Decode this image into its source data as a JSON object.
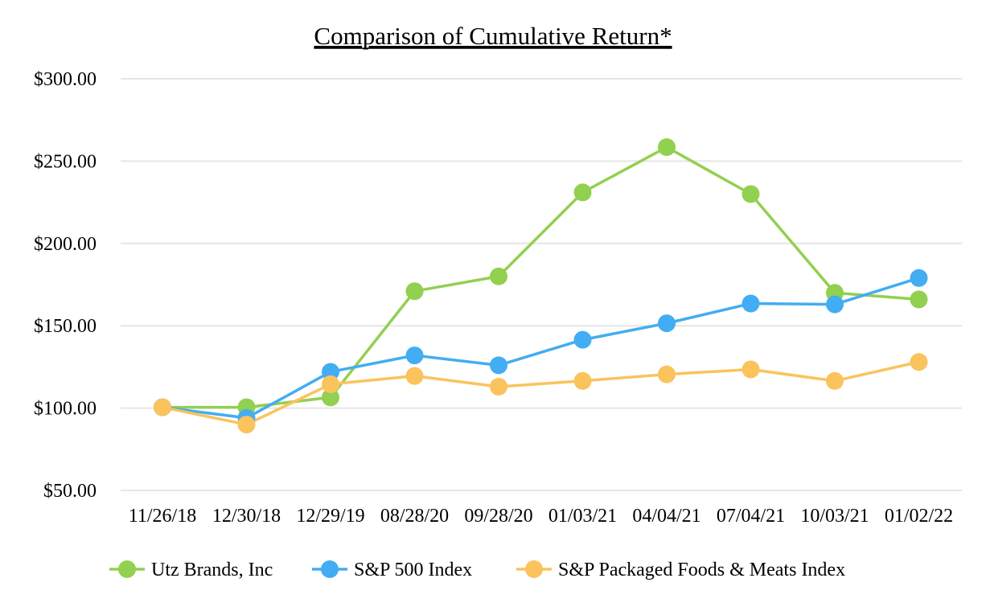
{
  "chart_data": {
    "type": "line",
    "title": "Comparison of Cumulative Return*",
    "xlabel": "",
    "ylabel": "",
    "categories": [
      "11/26/18",
      "12/30/18",
      "12/29/19",
      "08/28/20",
      "09/28/20",
      "01/03/21",
      "04/04/21",
      "07/04/21",
      "10/03/21",
      "01/02/22"
    ],
    "y_ticks": [
      "$50.00",
      "$100.00",
      "$150.00",
      "$200.00",
      "$250.00",
      "$300.00"
    ],
    "ylim": [
      50,
      300
    ],
    "grid": true,
    "legend_position": "bottom",
    "series": [
      {
        "name": "Utz Brands, Inc",
        "color": "#92d050",
        "values": [
          100.5,
          100.5,
          106.5,
          171,
          180,
          231,
          258.5,
          230,
          170,
          166
        ]
      },
      {
        "name": "S&P 500 Index",
        "color": "#42adf2",
        "values": [
          100.5,
          94,
          122,
          132,
          126,
          141.5,
          151.5,
          163.5,
          163,
          179
        ]
      },
      {
        "name": "S&P Packaged Foods & Meats Index",
        "color": "#fbc35c",
        "values": [
          100.5,
          90,
          114.5,
          119.5,
          113,
          116.5,
          120.5,
          123.5,
          116.5,
          128
        ]
      }
    ]
  }
}
